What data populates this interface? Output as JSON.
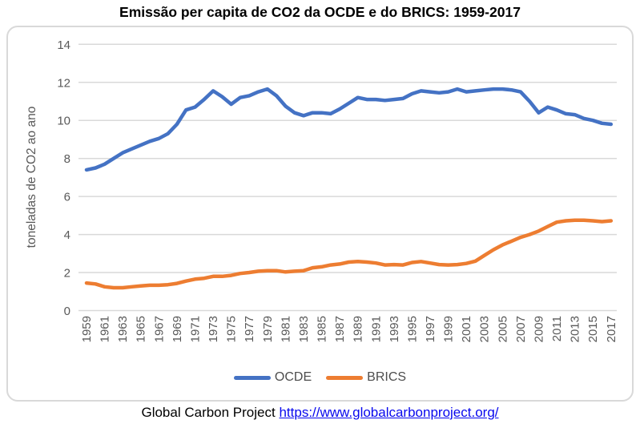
{
  "footer": {
    "source_text": "Global Carbon Project",
    "link_text": "https://www.globalcarbonproject.org/",
    "link_href": "https://www.globalcarbonproject.org/"
  },
  "colors": {
    "ocde": "#4472C4",
    "brics": "#ED7D31",
    "gridline": "#D9D9D9",
    "axis_text": "#595959",
    "legend_text": "#4d4d4d",
    "link": "#0808ee"
  },
  "chart_data": {
    "type": "line",
    "title": "Emissão per capita de CO2 da OCDE e do BRICS: 1959-2017",
    "xlabel": "",
    "ylabel": "toneladas de CO2 ao ano",
    "ylim": [
      0,
      14
    ],
    "ytick_step": 2,
    "grid": true,
    "legend_position": "bottom",
    "x": [
      1959,
      1960,
      1961,
      1962,
      1963,
      1964,
      1965,
      1966,
      1967,
      1968,
      1969,
      1970,
      1971,
      1972,
      1973,
      1974,
      1975,
      1976,
      1977,
      1978,
      1979,
      1980,
      1981,
      1982,
      1983,
      1984,
      1985,
      1986,
      1987,
      1988,
      1989,
      1990,
      1991,
      1992,
      1993,
      1994,
      1995,
      1996,
      1997,
      1998,
      1999,
      2000,
      2001,
      2002,
      2003,
      2004,
      2005,
      2006,
      2007,
      2008,
      2009,
      2010,
      2011,
      2012,
      2013,
      2014,
      2015,
      2016,
      2017
    ],
    "xtick_labels": [
      "1959",
      "1961",
      "1963",
      "1965",
      "1967",
      "1969",
      "1971",
      "1973",
      "1975",
      "1977",
      "1979",
      "1981",
      "1983",
      "1985",
      "1987",
      "1989",
      "1991",
      "1993",
      "1995",
      "1997",
      "1999",
      "2001",
      "2003",
      "2005",
      "2007",
      "2009",
      "2011",
      "2013",
      "2015",
      "2017"
    ],
    "series": [
      {
        "name": "OCDE",
        "color": "#4472C4",
        "values": [
          7.4,
          7.5,
          7.7,
          8.0,
          8.3,
          8.5,
          8.7,
          8.9,
          9.05,
          9.3,
          9.8,
          10.55,
          10.7,
          11.1,
          11.55,
          11.25,
          10.85,
          11.2,
          11.3,
          11.5,
          11.65,
          11.3,
          10.75,
          10.4,
          10.25,
          10.4,
          10.4,
          10.35,
          10.6,
          10.9,
          11.2,
          11.1,
          11.1,
          11.05,
          11.1,
          11.15,
          11.4,
          11.55,
          11.5,
          11.45,
          11.5,
          11.65,
          11.5,
          11.55,
          11.6,
          11.65,
          11.65,
          11.6,
          11.5,
          11.0,
          10.4,
          10.7,
          10.55,
          10.35,
          10.3,
          10.1,
          10.0,
          9.85,
          9.8
        ]
      },
      {
        "name": "BRICS",
        "color": "#ED7D31",
        "values": [
          1.45,
          1.4,
          1.25,
          1.2,
          1.2,
          1.25,
          1.3,
          1.33,
          1.33,
          1.36,
          1.43,
          1.55,
          1.65,
          1.7,
          1.8,
          1.8,
          1.85,
          1.95,
          2.0,
          2.07,
          2.1,
          2.1,
          2.03,
          2.07,
          2.1,
          2.25,
          2.3,
          2.4,
          2.45,
          2.55,
          2.58,
          2.55,
          2.5,
          2.4,
          2.42,
          2.4,
          2.53,
          2.58,
          2.5,
          2.42,
          2.4,
          2.42,
          2.48,
          2.6,
          2.9,
          3.2,
          3.45,
          3.65,
          3.85,
          4.0,
          4.18,
          4.42,
          4.65,
          4.72,
          4.75,
          4.75,
          4.72,
          4.68,
          4.72
        ]
      }
    ]
  }
}
